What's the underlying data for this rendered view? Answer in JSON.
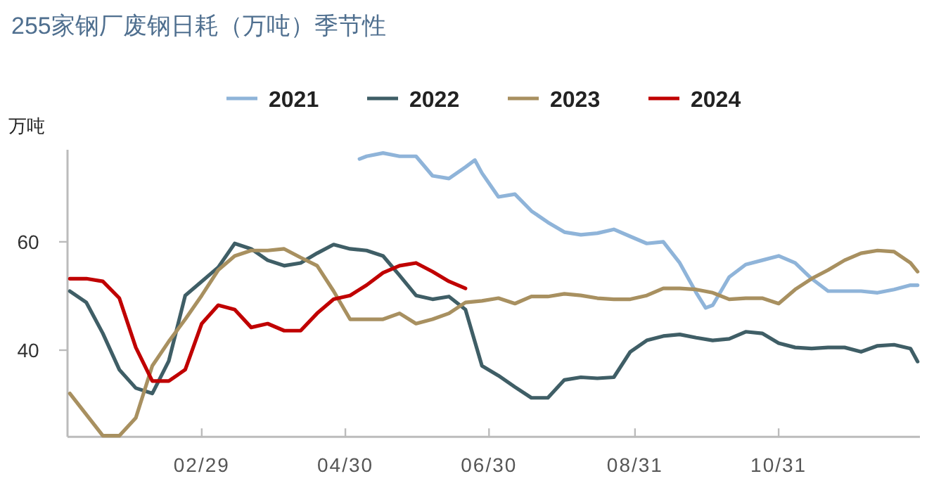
{
  "chart_data": {
    "type": "line",
    "title": "255家钢厂废钢日耗（万吨）季节性",
    "ylabel": "万吨",
    "legend": "top",
    "xlim": [
      "--01-03",
      "--12-30"
    ],
    "ylim": [
      24,
      77
    ],
    "yticks": [
      40,
      60
    ],
    "xticks": [
      {
        "value": "--02-29",
        "label": "02/29"
      },
      {
        "value": "--04-30",
        "label": "04/30"
      },
      {
        "value": "--06-30",
        "label": "06/30"
      },
      {
        "value": "--08-31",
        "label": "08/31"
      },
      {
        "value": "--10-31",
        "label": "10/31"
      }
    ],
    "x": [
      "--01-04",
      "--01-11",
      "--01-18",
      "--01-25",
      "--02-01",
      "--02-08",
      "--02-15",
      "--02-22",
      "--02-29",
      "--03-07",
      "--03-14",
      "--03-21",
      "--03-28",
      "--04-04",
      "--04-11",
      "--04-18",
      "--04-25",
      "--05-02",
      "--05-09",
      "--05-16",
      "--05-23",
      "--05-30",
      "--06-06",
      "--06-13",
      "--06-20",
      "--06-27",
      "--07-04",
      "--07-11",
      "--07-18",
      "--07-25",
      "--08-01",
      "--08-08",
      "--08-15",
      "--08-22",
      "--08-29",
      "--09-05",
      "--09-12",
      "--09-19",
      "--09-26",
      "--10-03",
      "--10-10",
      "--10-17",
      "--10-24",
      "--10-31",
      "--11-07",
      "--11-14",
      "--11-21",
      "--11-28",
      "--12-05",
      "--12-12",
      "--12-19",
      "--12-26",
      "--12-29"
    ],
    "series": [
      {
        "name": "2021",
        "color": "#8fb4d9",
        "x": [
          "--05-06",
          "--05-09",
          "--05-16",
          "--05-23",
          "--05-30",
          "--06-06",
          "--06-13",
          "--06-20",
          "--06-24",
          "--06-27",
          "--07-04",
          "--07-11",
          "--07-18",
          "--07-25",
          "--08-01",
          "--08-08",
          "--08-15",
          "--08-22",
          "--08-29",
          "--09-05",
          "--09-12",
          "--09-19",
          "--09-26",
          "--09-30",
          "--10-03",
          "--10-10",
          "--10-17",
          "--10-24",
          "--10-31",
          "--11-07",
          "--11-14",
          "--11-21",
          "--11-28",
          "--12-05",
          "--12-12",
          "--12-19",
          "--12-26",
          "--12-29"
        ],
        "values": [
          75.3,
          75.8,
          76.4,
          75.8,
          75.8,
          72.2,
          71.7,
          73.8,
          75.1,
          72.7,
          68.3,
          68.8,
          65.7,
          63.6,
          61.8,
          61.3,
          61.6,
          62.3,
          61,
          59.7,
          60,
          56.1,
          50.6,
          47.8,
          48.3,
          53.5,
          55.8,
          56.6,
          57.4,
          56.1,
          53.2,
          50.9,
          50.9,
          50.9,
          50.6,
          51.2,
          52,
          52
        ]
      },
      {
        "name": "2022",
        "color": "#3f5e66",
        "values": [
          50.9,
          48.8,
          43.1,
          36.4,
          33,
          32,
          38,
          50.1,
          52.7,
          55.3,
          59.7,
          58.7,
          56.6,
          55.6,
          56.1,
          57.9,
          59.5,
          58.7,
          58.4,
          57.4,
          53.8,
          50.1,
          49.4,
          49.9,
          47.5,
          37.1,
          35.3,
          33.2,
          31.2,
          31.2,
          34.5,
          35,
          34.8,
          35,
          39.7,
          41.8,
          42.6,
          42.9,
          42.3,
          41.8,
          42.1,
          43.4,
          43.1,
          41.3,
          40.5,
          40.3,
          40.5,
          40.5,
          39.7,
          40.8,
          41,
          40.3,
          37.9
        ]
      },
      {
        "name": "2023",
        "color": "#a89060",
        "values": [
          32,
          28.1,
          24.2,
          24.2,
          27.5,
          37.1,
          41.6,
          45.7,
          50.1,
          54.8,
          57.4,
          58.4,
          58.4,
          58.7,
          57.1,
          55.6,
          50.9,
          45.7,
          45.7,
          45.7,
          46.8,
          44.9,
          45.7,
          46.8,
          48.8,
          49.1,
          49.6,
          48.6,
          49.9,
          49.9,
          50.4,
          50.1,
          49.6,
          49.4,
          49.4,
          50.1,
          51.4,
          51.4,
          51.2,
          50.6,
          49.4,
          49.6,
          49.6,
          48.6,
          51.2,
          53.2,
          54.8,
          56.6,
          57.9,
          58.4,
          58.2,
          56.1,
          54.5
        ]
      },
      {
        "name": "2024",
        "color": "#c00000",
        "values": [
          53.2,
          53.2,
          52.7,
          49.6,
          40.5,
          34.3,
          34.3,
          36.4,
          44.9,
          48.3,
          47.5,
          44.2,
          44.9,
          43.6,
          43.6,
          46.8,
          49.4,
          50.1,
          52,
          54.3,
          55.6,
          56.1,
          54.5,
          52.7,
          51.4,
          null,
          null,
          null,
          null,
          null,
          null,
          null,
          null,
          null,
          null,
          null,
          null,
          null,
          null,
          null,
          null,
          null,
          null,
          null,
          null,
          null,
          null,
          null,
          null,
          null,
          null,
          null,
          null
        ]
      }
    ]
  }
}
